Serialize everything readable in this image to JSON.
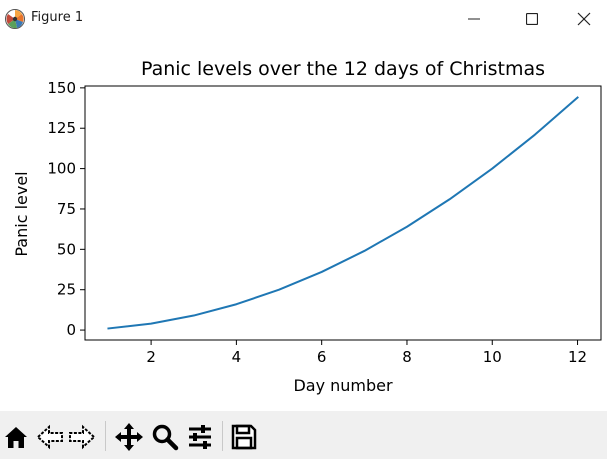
{
  "window": {
    "title": "Figure 1"
  },
  "toolbar": {
    "buttons": [
      {
        "name": "home",
        "icon": "home-icon"
      },
      {
        "name": "back",
        "icon": "back-arrow-icon"
      },
      {
        "name": "forward",
        "icon": "forward-arrow-icon"
      },
      {
        "name": "pan",
        "icon": "move-arrows-icon"
      },
      {
        "name": "zoom",
        "icon": "magnifier-icon"
      },
      {
        "name": "configure",
        "icon": "sliders-icon"
      },
      {
        "name": "save",
        "icon": "floppy-disk-icon"
      }
    ]
  },
  "chart_data": {
    "type": "line",
    "title": "Panic levels over the 12 days of Christmas",
    "xlabel": "Day number",
    "ylabel": "Panic level",
    "x": [
      1,
      2,
      3,
      4,
      5,
      6,
      7,
      8,
      9,
      10,
      11,
      12
    ],
    "series": [
      {
        "values": [
          1,
          4,
          9,
          16,
          25,
          36,
          49,
          64,
          81,
          100,
          121,
          144
        ],
        "color": "#1f77b4"
      }
    ],
    "xlim": [
      0.45,
      12.55
    ],
    "ylim": [
      -6.15,
      151.15
    ],
    "xticks": [
      2,
      4,
      6,
      8,
      10,
      12
    ],
    "yticks": [
      0,
      25,
      50,
      75,
      100,
      125,
      150
    ],
    "grid": false
  }
}
